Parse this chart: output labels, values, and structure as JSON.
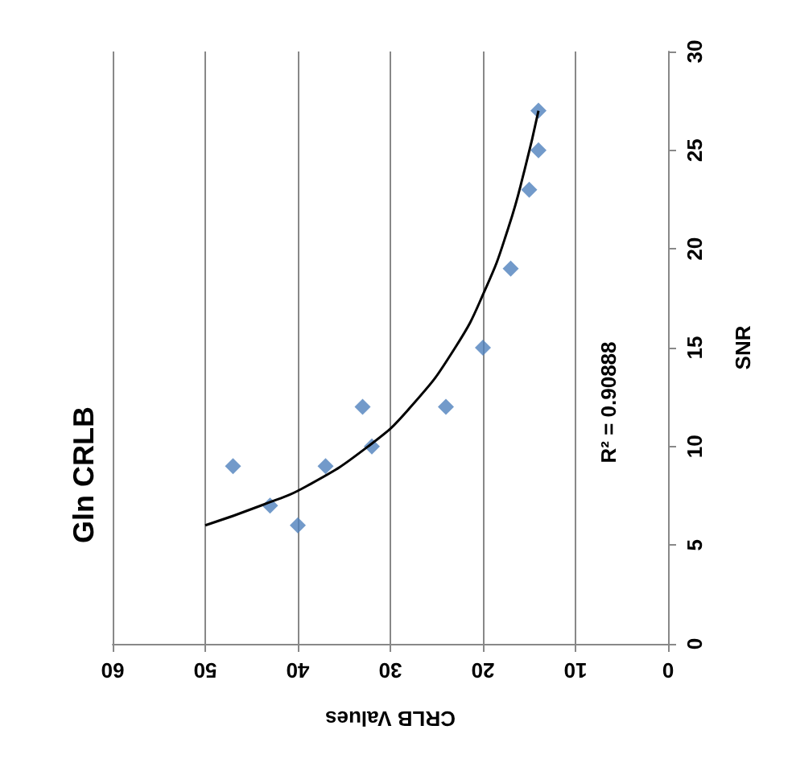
{
  "chart_data": {
    "type": "scatter",
    "title": "Gln CRLB",
    "xlabel": "CRLB Values",
    "ylabel": "SNR",
    "series": [
      {
        "color": "#4f81bd",
        "marker": "diamond",
        "x": [
          47,
          43,
          40,
          37,
          33,
          32,
          24,
          20,
          17,
          15,
          14,
          14
        ],
        "values": [
          9,
          7,
          6,
          9,
          12,
          10,
          12,
          15,
          19,
          23,
          25,
          27
        ]
      },
      {
        "type": "line",
        "marker": "none",
        "color": "#000000",
        "x": [
          50,
          44,
          39,
          32.4,
          27.8,
          23,
          19.7,
          17.3,
          15.5,
          14
        ],
        "values": [
          6,
          7,
          8,
          10,
          12,
          15,
          18,
          21,
          24,
          27
        ]
      }
    ],
    "xlim": [
      60,
      0
    ],
    "xticks": [
      60,
      50,
      40,
      30,
      20,
      10,
      0
    ],
    "ylim": [
      0,
      30
    ],
    "yticks": [
      0,
      5,
      10,
      15,
      20,
      25,
      30
    ],
    "grid": "x",
    "annotations": [
      "R² = 0.90888"
    ]
  }
}
